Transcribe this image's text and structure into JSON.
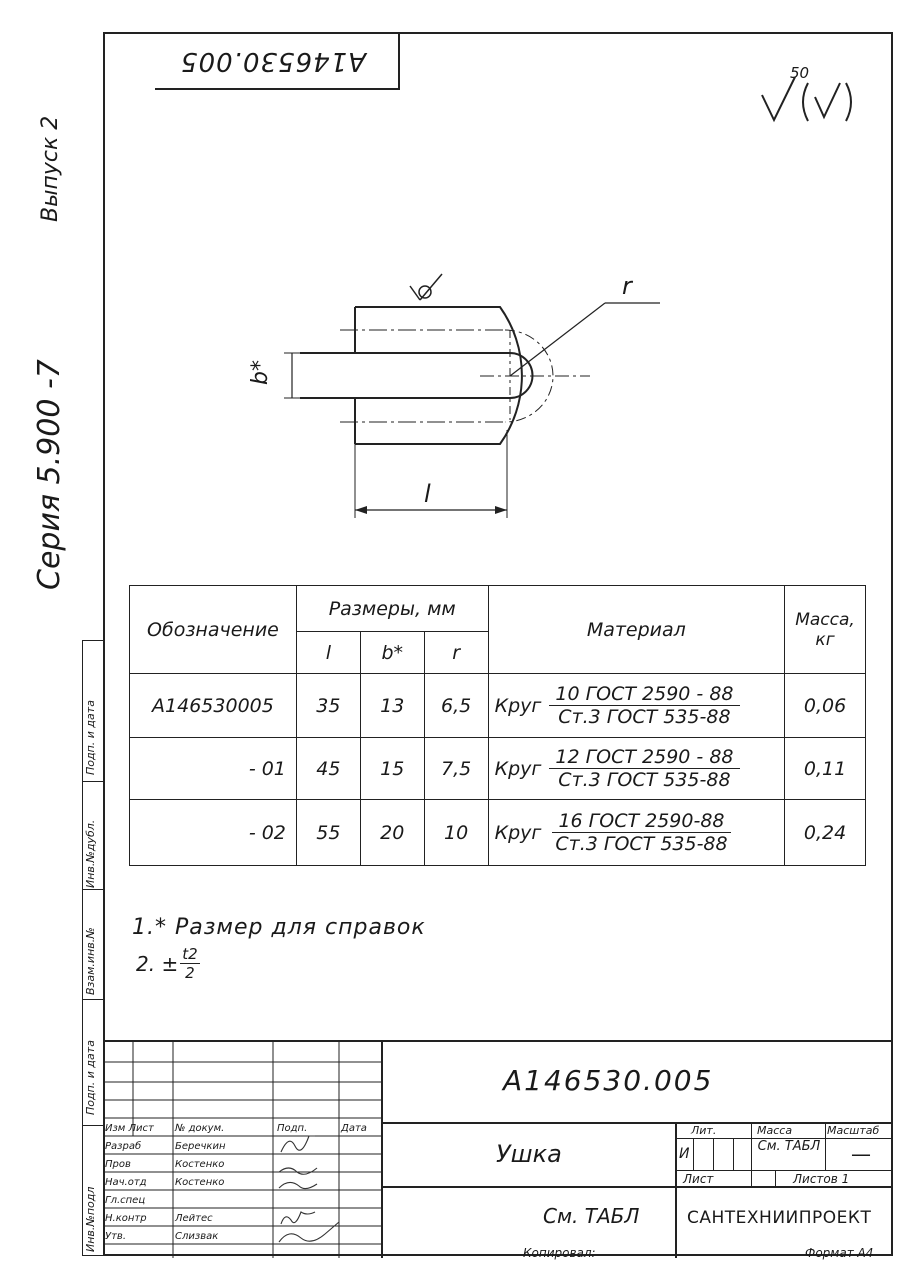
{
  "side_header": {
    "series": "Серия 5.900 -7",
    "issue": "Выпуск 2"
  },
  "top_stamp": "А146530.005",
  "roughness": {
    "value": "50",
    "symbol": "√(√)"
  },
  "drawing_labels": {
    "b": "b*",
    "l": "l",
    "r": "r"
  },
  "table": {
    "headers": {
      "designation": "Обозначение",
      "sizes": "Размеры, мм",
      "l": "l",
      "b": "b*",
      "r": "r",
      "material": "Материал",
      "mass": "Масса, кг"
    },
    "rows": [
      {
        "designation": "А146530005",
        "l": "35",
        "b": "13",
        "r": "6,5",
        "mat_prefix": "Круг",
        "mat_top": "10  ГОСТ 2590 - 88",
        "mat_bot": "Ст.3   ГОСТ 535-88",
        "mass": "0,06"
      },
      {
        "designation": "- 01",
        "l": "45",
        "b": "15",
        "r": "7,5",
        "mat_prefix": "Круг",
        "mat_top": "12  ГОСТ 2590 - 88",
        "mat_bot": "Ст.3   ГОСТ 535-88",
        "mass": "0,11"
      },
      {
        "designation": "- 02",
        "l": "55",
        "b": "20",
        "r": "10",
        "mat_prefix": "Круг",
        "mat_top": "16    ГОСТ 2590-88",
        "mat_bot": "Ст.3  ГОСТ 535-88",
        "mass": "0,24"
      }
    ]
  },
  "notes": {
    "n1": "1.* Размер для справок",
    "n2_prefix": "2. ±",
    "n2_num": "t2",
    "n2_den": "2"
  },
  "left_strip": [
    "Инв.№подл",
    "Подп. и дата",
    "Взам.инв.№",
    "Инв.№дубл.",
    "Подп. и дата"
  ],
  "title_block": {
    "code": "А146530.005",
    "name": "Ушка",
    "lit_label": "Лит.",
    "mass_label": "Масса",
    "scale_label": "Масштаб",
    "lit_value": "И",
    "mass_value": "См. ТАБЛ",
    "scale_value": "—",
    "sheet_label": "Лист",
    "sheets_label": "Листов 1",
    "material": "См. ТАБЛ",
    "org": "САНТЕХНИИПРОЕКТ",
    "copied": "Копировал:",
    "format": "Формат А4",
    "signers": [
      {
        "role": "Изм Лист",
        "name": "№ докум.",
        "sign": "Подп.",
        "date": "Дата"
      },
      {
        "role": "Разраб",
        "name": "Беречкин",
        "sign": "",
        "date": ""
      },
      {
        "role": "Пров",
        "name": "Костенко",
        "sign": "",
        "date": ""
      },
      {
        "role": "Нач.отд",
        "name": "Костенко",
        "sign": "",
        "date": ""
      },
      {
        "role": "Гл.спец",
        "name": "",
        "sign": "",
        "date": ""
      },
      {
        "role": "Н.контр",
        "name": "Лейтес",
        "sign": "",
        "date": ""
      },
      {
        "role": "Утв.",
        "name": "Слизвак",
        "sign": "",
        "date": ""
      }
    ]
  }
}
